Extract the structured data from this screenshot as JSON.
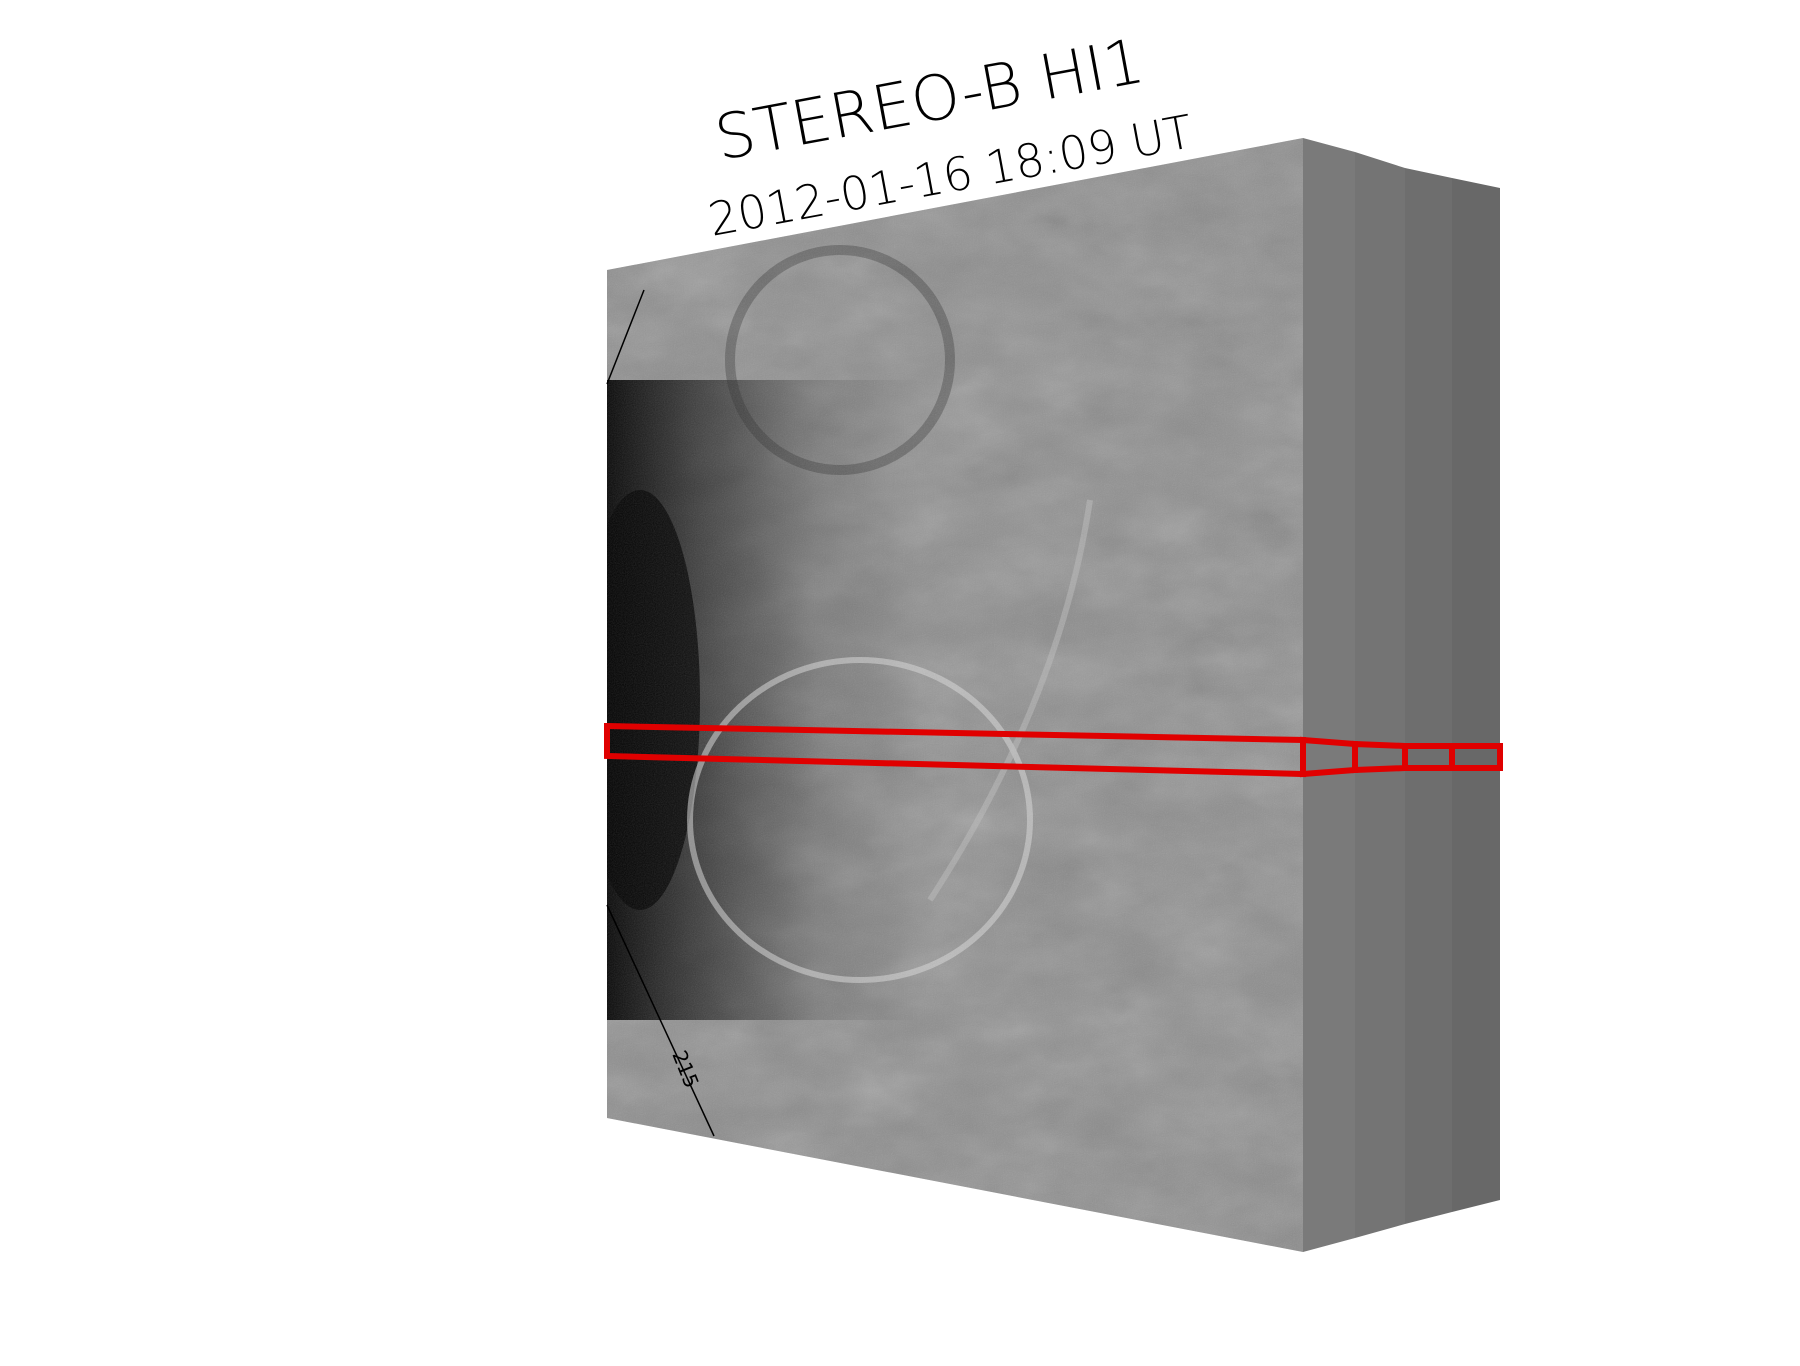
{
  "title": {
    "instrument": "STEREO-B HI1",
    "timestamp": "2012-01-16 18:09 UT"
  },
  "front_frame": {
    "angle_label": "215"
  },
  "stacked_frame_count": 4,
  "colors": {
    "slit_outline": "#e00000",
    "frame_gray": "#8a8a8a",
    "back_frame_gray": "#6a6a6a",
    "background": "#ffffff"
  }
}
